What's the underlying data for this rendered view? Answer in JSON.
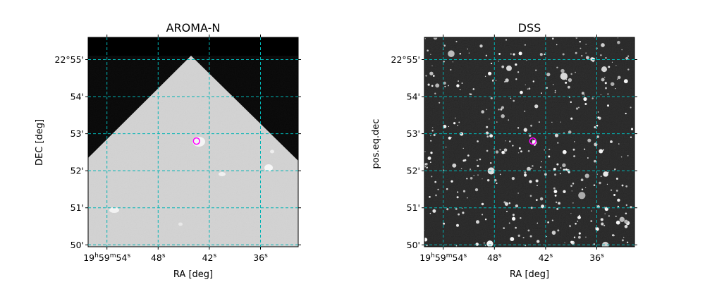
{
  "chart_data": [
    {
      "type": "image",
      "title": "AROMA-N",
      "xlabel": "RA [deg]",
      "ylabel": "DEC [deg]",
      "grid": true,
      "grid_color": "#00b4b4",
      "image_style": "grey survey image with black masked region above a diagonal boundary",
      "xticks": [
        {
          "value_sec": 54,
          "h": "19",
          "m": "59",
          "s": "54"
        },
        {
          "value_sec": 48,
          "s": "48"
        },
        {
          "value_sec": 42,
          "s": "42"
        },
        {
          "value_sec": 36,
          "s": "36"
        }
      ],
      "yticks": [
        {
          "arcmin": 55,
          "label": "22°55'"
        },
        {
          "arcmin": 54,
          "label": "54'"
        },
        {
          "arcmin": 53,
          "label": "53'"
        },
        {
          "arcmin": 52,
          "label": "52'"
        },
        {
          "arcmin": 51,
          "label": "51'"
        },
        {
          "arcmin": 50,
          "label": "50'"
        }
      ],
      "marker": {
        "shape": "circle",
        "color": "#ff00ff",
        "ra_sec": 43.5,
        "dec_arcmin": 52.8
      }
    },
    {
      "type": "image",
      "title": "DSS",
      "xlabel": "RA [deg]",
      "ylabel": "pos.eq.dec",
      "grid": true,
      "grid_color": "#00b4b4",
      "image_style": "dark star field",
      "xticks": [
        {
          "value_sec": 54,
          "h": "19",
          "m": "59",
          "s": "54"
        },
        {
          "value_sec": 48,
          "s": "48"
        },
        {
          "value_sec": 42,
          "s": "42"
        },
        {
          "value_sec": 36,
          "s": "36"
        }
      ],
      "yticks": [
        {
          "arcmin": 55,
          "label": "22°55'"
        },
        {
          "arcmin": 54,
          "label": "54'"
        },
        {
          "arcmin": 53,
          "label": "53'"
        },
        {
          "arcmin": 52,
          "label": "52'"
        },
        {
          "arcmin": 51,
          "label": "51'"
        },
        {
          "arcmin": 50,
          "label": "50'"
        }
      ],
      "marker": {
        "shape": "circle",
        "color": "#ff00ff",
        "ra_sec": 43.5,
        "dec_arcmin": 52.8
      }
    }
  ]
}
